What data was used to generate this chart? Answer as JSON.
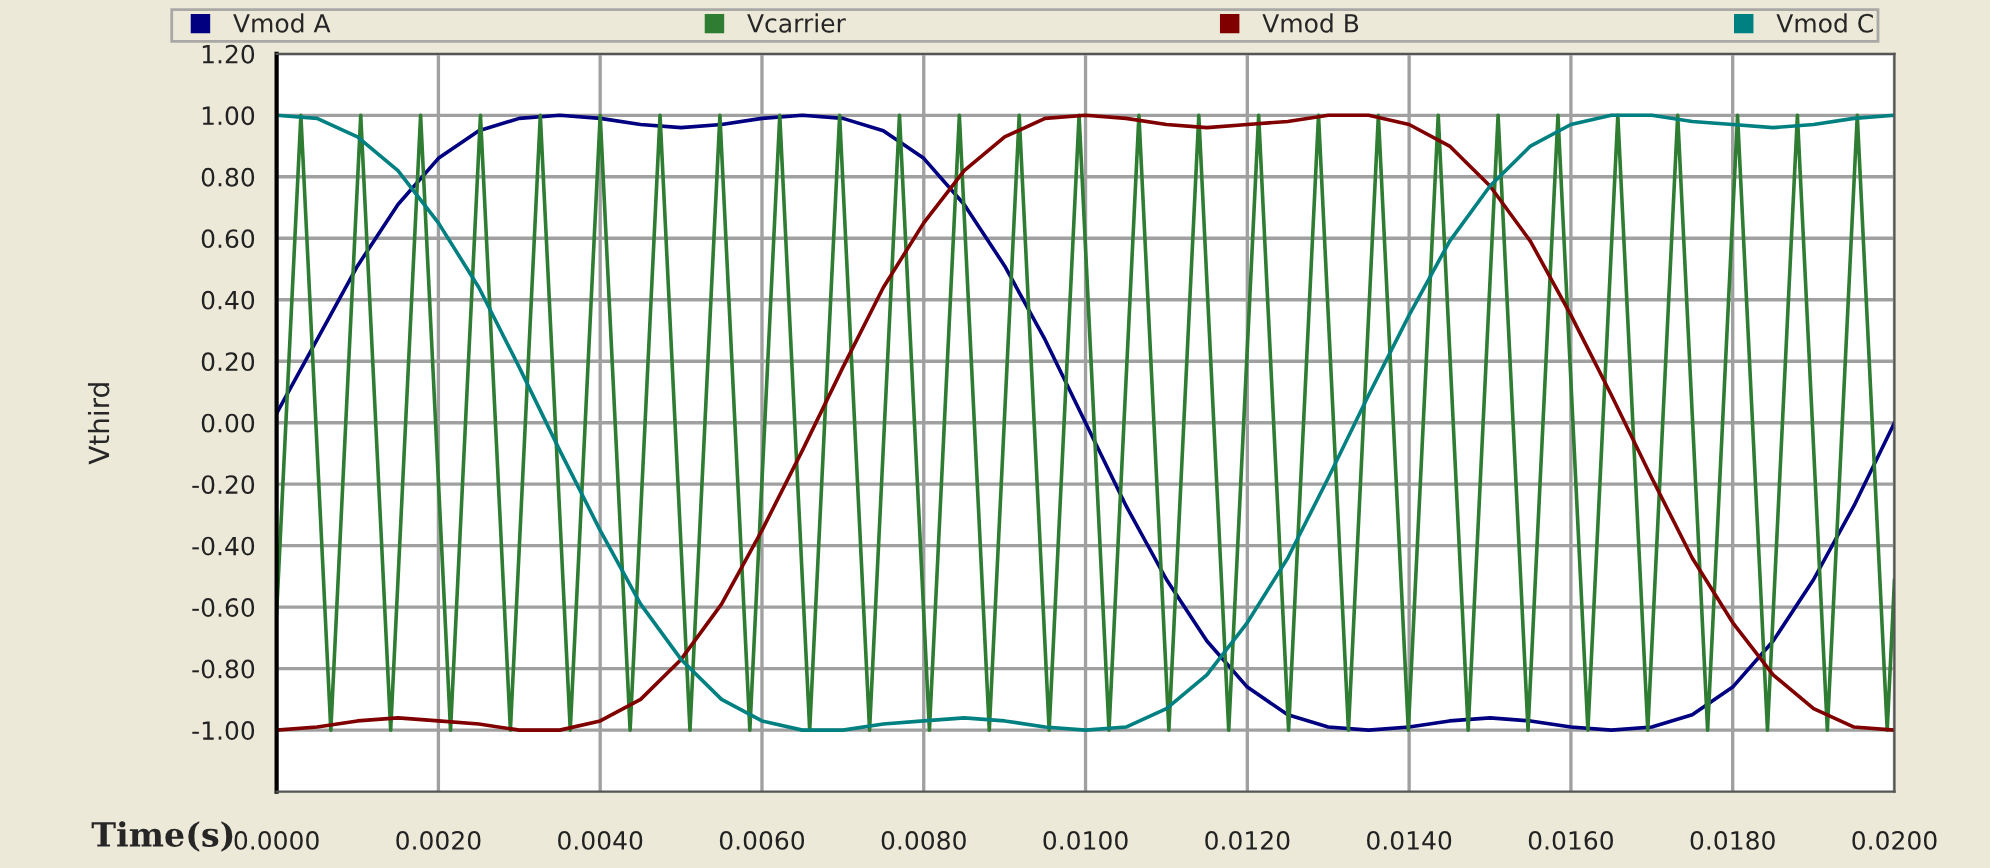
{
  "chart_data": {
    "type": "line",
    "xlabel": "Time(s)",
    "ylabel": "Vthird",
    "x": [
      0,
      0.0005,
      0.001,
      0.0015,
      0.002,
      0.0025,
      0.003,
      0.0035,
      0.004,
      0.0045,
      0.005,
      0.0055,
      0.006,
      0.0065,
      0.007,
      0.0075,
      0.008,
      0.0085,
      0.009,
      0.0095,
      0.01,
      0.0105,
      0.011,
      0.0115,
      0.012,
      0.0125,
      0.013,
      0.0135,
      0.014,
      0.0145,
      0.015,
      0.0155,
      0.016,
      0.0165,
      0.017,
      0.0175,
      0.018,
      0.0185,
      0.019,
      0.0195,
      0.02
    ],
    "series": [
      {
        "name": "Vmod A",
        "color": "#000080",
        "values": [
          0.03,
          0.27,
          0.51,
          0.71,
          0.86,
          0.95,
          0.99,
          1.0,
          0.99,
          0.97,
          0.96,
          0.97,
          0.99,
          1.0,
          0.99,
          0.95,
          0.86,
          0.71,
          0.51,
          0.27,
          0.0,
          -0.27,
          -0.51,
          -0.71,
          -0.86,
          -0.95,
          -0.99,
          -1.0,
          -0.99,
          -0.97,
          -0.96,
          -0.97,
          -0.99,
          -1.0,
          -0.99,
          -0.95,
          -0.86,
          -0.71,
          -0.51,
          -0.27,
          0.0
        ]
      },
      {
        "name": "Vcarrier",
        "color": "#2e7d32",
        "x": [
          0,
          0.0003,
          0.00067,
          0.00104,
          0.00141,
          0.00178,
          0.00215,
          0.00252,
          0.00289,
          0.00326,
          0.00363,
          0.004,
          0.00437,
          0.00474,
          0.00511,
          0.00548,
          0.00585,
          0.00622,
          0.00659,
          0.00696,
          0.00733,
          0.0077,
          0.00807,
          0.00844,
          0.00881,
          0.00918,
          0.00955,
          0.00992,
          0.01029,
          0.01066,
          0.01103,
          0.0114,
          0.01177,
          0.01214,
          0.01251,
          0.01288,
          0.01325,
          0.01362,
          0.01399,
          0.01436,
          0.01473,
          0.0151,
          0.01547,
          0.01584,
          0.01621,
          0.01658,
          0.01695,
          0.01732,
          0.01769,
          0.01806,
          0.01843,
          0.0188,
          0.01917,
          0.01954,
          0.01991,
          0.02
        ],
        "values": [
          -0.62,
          1,
          -1,
          1,
          -1,
          1,
          -1,
          1,
          -1,
          1,
          -1,
          1,
          -1,
          1,
          -1,
          1,
          -1,
          1,
          -1,
          1,
          -1,
          1,
          -1,
          1,
          -1,
          1,
          -1,
          1,
          -1,
          1,
          -1,
          1,
          -1,
          1,
          -1,
          1,
          -1,
          1,
          -1,
          1,
          -1,
          1,
          -1,
          1,
          -1,
          1,
          -1,
          1,
          -1,
          1,
          -1,
          1,
          -1,
          1,
          -1,
          -0.51
        ]
      },
      {
        "name": "Vmod B",
        "color": "#800000",
        "values": [
          -1.0,
          -0.99,
          -0.97,
          -0.96,
          -0.97,
          -0.98,
          -1.0,
          -1.0,
          -0.97,
          -0.9,
          -0.77,
          -0.59,
          -0.35,
          -0.09,
          0.18,
          0.44,
          0.65,
          0.82,
          0.93,
          0.99,
          1.0,
          0.99,
          0.97,
          0.96,
          0.97,
          0.98,
          1.0,
          1.0,
          0.97,
          0.9,
          0.77,
          0.59,
          0.35,
          0.09,
          -0.18,
          -0.44,
          -0.65,
          -0.82,
          -0.93,
          -0.99,
          -1.0
        ]
      },
      {
        "name": "Vmod C",
        "color": "#008080",
        "values": [
          1.0,
          0.99,
          0.93,
          0.82,
          0.65,
          0.44,
          0.18,
          -0.09,
          -0.35,
          -0.59,
          -0.77,
          -0.9,
          -0.97,
          -1.0,
          -1.0,
          -0.98,
          -0.97,
          -0.96,
          -0.97,
          -0.99,
          -1.0,
          -0.99,
          -0.93,
          -0.82,
          -0.65,
          -0.44,
          -0.18,
          0.09,
          0.35,
          0.59,
          0.77,
          0.9,
          0.97,
          1.0,
          1.0,
          0.98,
          0.97,
          0.96,
          0.97,
          0.99,
          1.0
        ]
      }
    ],
    "xlim": [
      0,
      0.02
    ],
    "xticks": [
      {
        "value": 0,
        "label": "0.0000"
      },
      {
        "value": 0.002,
        "label": "0.0020"
      },
      {
        "value": 0.004,
        "label": "0.0040"
      },
      {
        "value": 0.006,
        "label": "0.0060"
      },
      {
        "value": 0.008,
        "label": "0.0080"
      },
      {
        "value": 0.01,
        "label": "0.0100"
      },
      {
        "value": 0.012,
        "label": "0.0120"
      },
      {
        "value": 0.014,
        "label": "0.0140"
      },
      {
        "value": 0.016,
        "label": "0.0160"
      },
      {
        "value": 0.018,
        "label": "0.0180"
      },
      {
        "value": 0.02,
        "label": "0.0200"
      }
    ],
    "ylim": [
      -1.2,
      1.2
    ],
    "yticks": [
      {
        "value": -1,
        "label": "-1.00"
      },
      {
        "value": -0.8,
        "label": "-0.80"
      },
      {
        "value": -0.6,
        "label": "-0.60"
      },
      {
        "value": -0.4,
        "label": "-0.40"
      },
      {
        "value": -0.2,
        "label": "-0.20"
      },
      {
        "value": 0,
        "label": "0.00"
      },
      {
        "value": 0.2,
        "label": "0.20"
      },
      {
        "value": 0.4,
        "label": "0.40"
      },
      {
        "value": 0.6,
        "label": "0.60"
      },
      {
        "value": 0.8,
        "label": "0.80"
      },
      {
        "value": 1,
        "label": "1.00"
      },
      {
        "value": 1.2,
        "label": "1.20"
      }
    ],
    "grid": true,
    "legend": "top",
    "marker": "none",
    "line_style": "solid"
  }
}
